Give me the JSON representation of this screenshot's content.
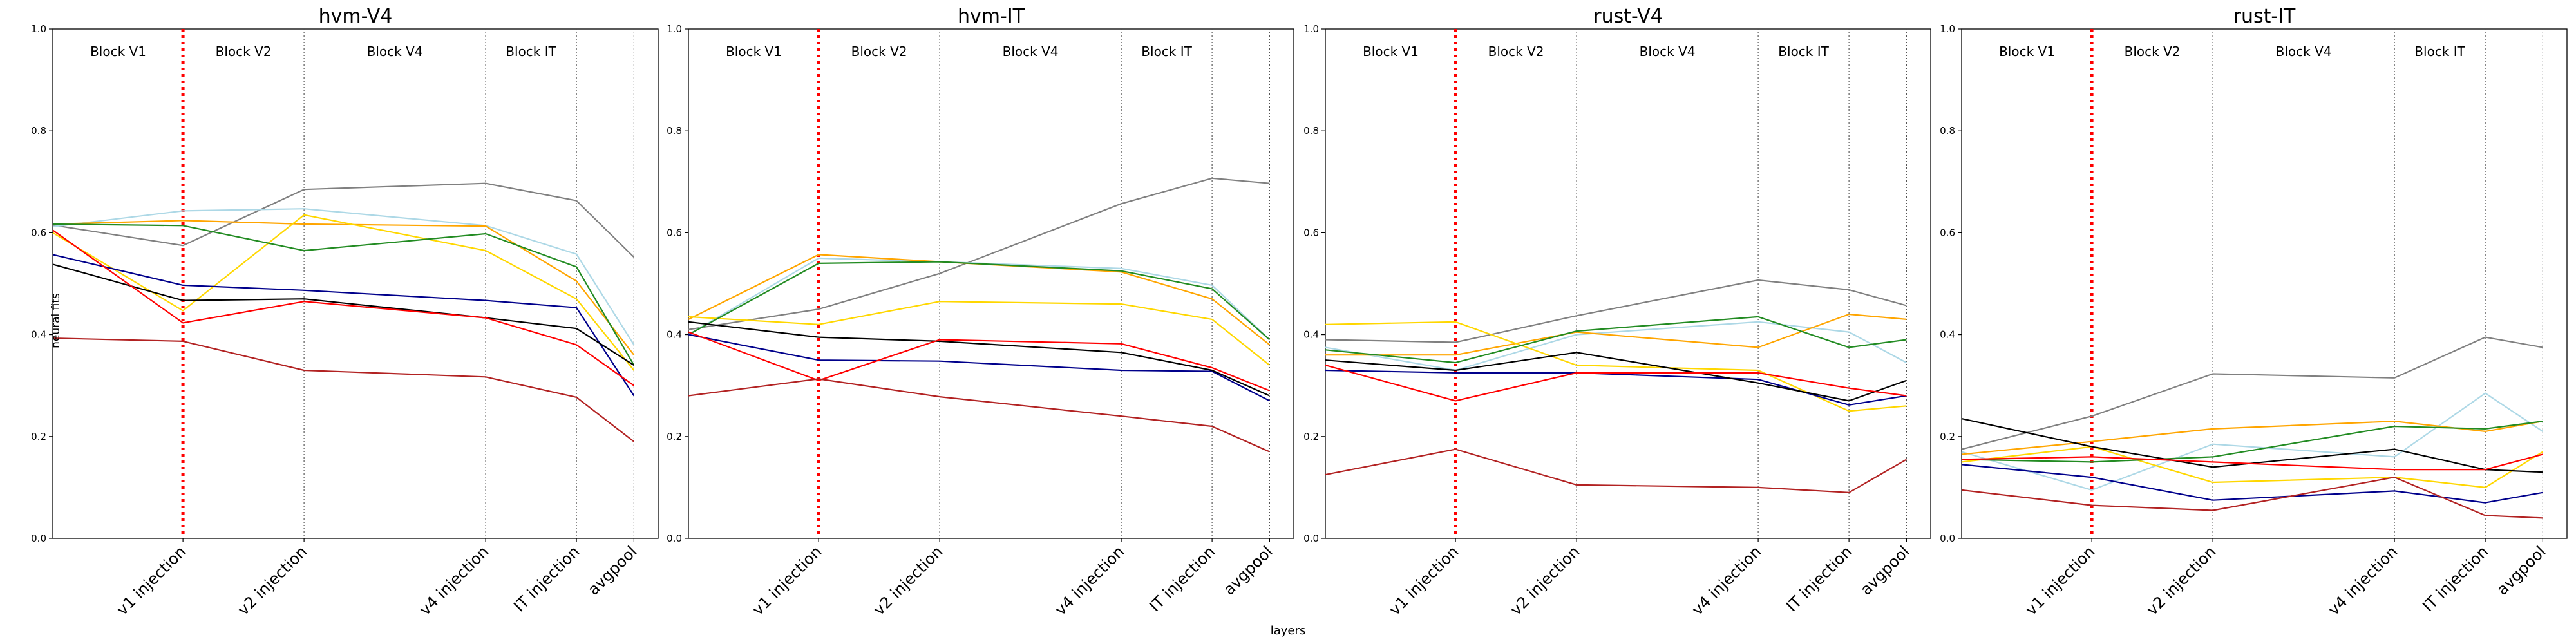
{
  "figure": {
    "xlabel": "layers",
    "ylabel": "neural fits"
  },
  "chart_data": [
    {
      "type": "line",
      "title": "hvm-V4",
      "x": [
        "v1 injection",
        "v2 injection",
        "v4 injection",
        "IT injection",
        "avgpool"
      ],
      "ylim": [
        0,
        1.0
      ],
      "yticks": [
        "0.0",
        "0.2",
        "0.4",
        "0.6",
        "0.8",
        "1.0"
      ],
      "block_labels": [
        "Block V1",
        "Block V2",
        "Block V4",
        "Block IT"
      ],
      "grid": false,
      "series": [
        {
          "color": "#808080",
          "start": 0.615,
          "values": [
            0.575,
            0.685,
            0.697,
            0.663,
            0.552
          ]
        },
        {
          "color": "#add8e6",
          "start": 0.612,
          "values": [
            0.643,
            0.647,
            0.614,
            0.558,
            0.38
          ]
        },
        {
          "color": "#ffa500",
          "start": 0.617,
          "values": [
            0.624,
            0.617,
            0.613,
            0.505,
            0.36
          ]
        },
        {
          "color": "#ffd700",
          "start": 0.6,
          "values": [
            0.447,
            0.635,
            0.565,
            0.47,
            0.33
          ]
        },
        {
          "color": "#228b22",
          "start": 0.617,
          "values": [
            0.614,
            0.565,
            0.598,
            0.533,
            0.34
          ]
        },
        {
          "color": "#00008b",
          "start": 0.557,
          "values": [
            0.497,
            0.487,
            0.467,
            0.453,
            0.28
          ]
        },
        {
          "color": "#000000",
          "start": 0.538,
          "values": [
            0.467,
            0.47,
            0.433,
            0.412,
            0.34
          ]
        },
        {
          "color": "#ff0000",
          "start": 0.605,
          "values": [
            0.423,
            0.465,
            0.433,
            0.38,
            0.3
          ]
        },
        {
          "color": "#b22222",
          "start": 0.393,
          "values": [
            0.387,
            0.33,
            0.317,
            0.277,
            0.19
          ]
        }
      ]
    },
    {
      "type": "line",
      "title": "hvm-IT",
      "x": [
        "v1 injection",
        "v2 injection",
        "v4 injection",
        "IT injection",
        "avgpool"
      ],
      "ylim": [
        0,
        1.0
      ],
      "yticks": [
        "0.0",
        "0.2",
        "0.4",
        "0.6",
        "0.8",
        "1.0"
      ],
      "block_labels": [
        "Block V1",
        "Block V2",
        "Block V4",
        "Block IT"
      ],
      "grid": false,
      "series": [
        {
          "color": "#808080",
          "start": 0.41,
          "values": [
            0.45,
            0.52,
            0.657,
            0.707,
            0.697
          ]
        },
        {
          "color": "#add8e6",
          "start": 0.4,
          "values": [
            0.55,
            0.543,
            0.53,
            0.497,
            0.39
          ]
        },
        {
          "color": "#ffa500",
          "start": 0.43,
          "values": [
            0.557,
            0.543,
            0.523,
            0.47,
            0.38
          ]
        },
        {
          "color": "#ffd700",
          "start": 0.435,
          "values": [
            0.42,
            0.465,
            0.46,
            0.43,
            0.34
          ]
        },
        {
          "color": "#228b22",
          "start": 0.4,
          "values": [
            0.54,
            0.543,
            0.525,
            0.49,
            0.39
          ]
        },
        {
          "color": "#00008b",
          "start": 0.4,
          "values": [
            0.35,
            0.348,
            0.33,
            0.328,
            0.27
          ]
        },
        {
          "color": "#000000",
          "start": 0.425,
          "values": [
            0.395,
            0.387,
            0.365,
            0.33,
            0.28
          ]
        },
        {
          "color": "#ff0000",
          "start": 0.405,
          "values": [
            0.31,
            0.39,
            0.382,
            0.335,
            0.29
          ]
        },
        {
          "color": "#b22222",
          "start": 0.28,
          "values": [
            0.313,
            0.278,
            0.24,
            0.22,
            0.17
          ]
        }
      ]
    },
    {
      "type": "line",
      "title": "rust-V4",
      "x": [
        "v1 injection",
        "v2 injection",
        "v4 injection",
        "IT injection",
        "avgpool"
      ],
      "ylim": [
        0,
        1.0
      ],
      "yticks": [
        "0.0",
        "0.2",
        "0.4",
        "0.6",
        "0.8",
        "1.0"
      ],
      "block_labels": [
        "Block V1",
        "Block V2",
        "Block V4",
        "Block IT"
      ],
      "grid": false,
      "series": [
        {
          "color": "#808080",
          "start": 0.39,
          "values": [
            0.385,
            0.437,
            0.507,
            0.488,
            0.457
          ]
        },
        {
          "color": "#add8e6",
          "start": 0.375,
          "values": [
            0.33,
            0.4,
            0.425,
            0.405,
            0.345
          ]
        },
        {
          "color": "#ffa500",
          "start": 0.36,
          "values": [
            0.36,
            0.405,
            0.375,
            0.44,
            0.43
          ]
        },
        {
          "color": "#ffd700",
          "start": 0.42,
          "values": [
            0.425,
            0.34,
            0.33,
            0.25,
            0.26
          ]
        },
        {
          "color": "#228b22",
          "start": 0.37,
          "values": [
            0.345,
            0.407,
            0.435,
            0.375,
            0.39
          ]
        },
        {
          "color": "#00008b",
          "start": 0.33,
          "values": [
            0.325,
            0.325,
            0.312,
            0.262,
            0.28
          ]
        },
        {
          "color": "#000000",
          "start": 0.35,
          "values": [
            0.33,
            0.365,
            0.305,
            0.27,
            0.31
          ]
        },
        {
          "color": "#ff0000",
          "start": 0.34,
          "values": [
            0.27,
            0.325,
            0.325,
            0.295,
            0.28
          ]
        },
        {
          "color": "#b22222",
          "start": 0.125,
          "values": [
            0.175,
            0.105,
            0.1,
            0.09,
            0.155
          ]
        }
      ]
    },
    {
      "type": "line",
      "title": "rust-IT",
      "x": [
        "v1 injection",
        "v2 injection",
        "v4 injection",
        "IT injection",
        "avgpool"
      ],
      "ylim": [
        0,
        1.0
      ],
      "yticks": [
        "0.0",
        "0.2",
        "0.4",
        "0.6",
        "0.8",
        "1.0"
      ],
      "block_labels": [
        "Block V1",
        "Block V2",
        "Block V4",
        "Block IT"
      ],
      "grid": false,
      "series": [
        {
          "color": "#808080",
          "start": 0.175,
          "values": [
            0.24,
            0.323,
            0.315,
            0.395,
            0.375
          ]
        },
        {
          "color": "#add8e6",
          "start": 0.17,
          "values": [
            0.095,
            0.185,
            0.16,
            0.285,
            0.21
          ]
        },
        {
          "color": "#ffa500",
          "start": 0.165,
          "values": [
            0.19,
            0.215,
            0.23,
            0.21,
            0.23
          ]
        },
        {
          "color": "#ffd700",
          "start": 0.15,
          "values": [
            0.18,
            0.11,
            0.12,
            0.1,
            0.17
          ]
        },
        {
          "color": "#228b22",
          "start": 0.155,
          "values": [
            0.15,
            0.16,
            0.22,
            0.215,
            0.23
          ]
        },
        {
          "color": "#00008b",
          "start": 0.145,
          "values": [
            0.12,
            0.075,
            0.093,
            0.07,
            0.09
          ]
        },
        {
          "color": "#000000",
          "start": 0.235,
          "values": [
            0.18,
            0.14,
            0.175,
            0.135,
            0.13
          ]
        },
        {
          "color": "#ff0000",
          "start": 0.155,
          "values": [
            0.16,
            0.15,
            0.135,
            0.135,
            0.165
          ]
        },
        {
          "color": "#b22222",
          "start": 0.095,
          "values": [
            0.065,
            0.055,
            0.12,
            0.045,
            0.04
          ]
        }
      ]
    }
  ]
}
